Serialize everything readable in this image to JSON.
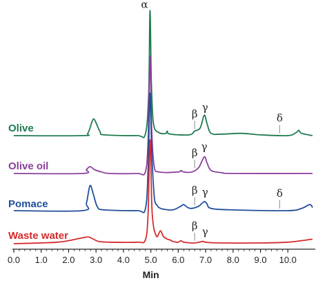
{
  "chart_data": {
    "type": "line",
    "xlabel": "Min",
    "xlim": [
      0.0,
      10.95
    ],
    "x_ticks": [
      "0.0",
      "1.0",
      "2.0",
      "3.0",
      "4.0",
      "5.0",
      "6.0",
      "7.0",
      "8.0",
      "9.0",
      "10.0"
    ],
    "grid": false,
    "legend": "none",
    "series": [
      {
        "name": "Olive",
        "color": "#1f7a4f",
        "points": [
          [
            0.0,
            0.0
          ],
          [
            2.5,
            0.0
          ],
          [
            2.7,
            0.03
          ],
          [
            2.85,
            0.18
          ],
          [
            2.92,
            0.22
          ],
          [
            3.0,
            0.17
          ],
          [
            3.15,
            0.05
          ],
          [
            3.3,
            0.01
          ],
          [
            4.5,
            0.0
          ],
          [
            4.8,
            0.02
          ],
          [
            4.92,
            0.55
          ],
          [
            4.97,
            1.65
          ],
          [
            5.02,
            0.7
          ],
          [
            5.1,
            0.15
          ],
          [
            5.3,
            0.04
          ],
          [
            5.55,
            0.03
          ],
          [
            5.6,
            0.06
          ],
          [
            5.7,
            0.02
          ],
          [
            6.4,
            0.01
          ],
          [
            6.6,
            0.06
          ],
          [
            6.8,
            0.1
          ],
          [
            6.95,
            0.27
          ],
          [
            7.05,
            0.16
          ],
          [
            7.2,
            0.03
          ],
          [
            7.6,
            0.02
          ],
          [
            8.3,
            0.03
          ],
          [
            9.0,
            0.01
          ],
          [
            10.0,
            0.0
          ],
          [
            10.3,
            0.04
          ],
          [
            10.4,
            0.07
          ],
          [
            10.5,
            0.03
          ],
          [
            10.9,
            0.0
          ]
        ]
      },
      {
        "name": "Olive oil",
        "color": "#8a3f9a",
        "points": [
          [
            0.0,
            0.0
          ],
          [
            2.5,
            0.0
          ],
          [
            2.65,
            0.05
          ],
          [
            2.78,
            0.09
          ],
          [
            2.95,
            0.05
          ],
          [
            3.2,
            0.02
          ],
          [
            3.5,
            0.0
          ],
          [
            4.5,
            0.0
          ],
          [
            4.8,
            0.02
          ],
          [
            4.9,
            0.45
          ],
          [
            4.97,
            1.55
          ],
          [
            5.03,
            0.6
          ],
          [
            5.12,
            0.1
          ],
          [
            5.3,
            0.02
          ],
          [
            6.0,
            0.02
          ],
          [
            6.1,
            0.04
          ],
          [
            6.2,
            0.02
          ],
          [
            6.5,
            0.02
          ],
          [
            6.75,
            0.08
          ],
          [
            6.95,
            0.22
          ],
          [
            7.05,
            0.14
          ],
          [
            7.2,
            0.04
          ],
          [
            7.6,
            0.01
          ],
          [
            8.0,
            0.0
          ],
          [
            10.9,
            0.0
          ]
        ]
      },
      {
        "name": "Pomace",
        "color": "#1f4e9a",
        "points": [
          [
            0.0,
            0.0
          ],
          [
            2.5,
            0.0
          ],
          [
            2.65,
            0.1
          ],
          [
            2.78,
            0.33
          ],
          [
            2.9,
            0.22
          ],
          [
            3.05,
            0.05
          ],
          [
            3.3,
            0.01
          ],
          [
            4.5,
            0.0
          ],
          [
            4.8,
            0.02
          ],
          [
            4.9,
            0.55
          ],
          [
            4.97,
            1.55
          ],
          [
            5.03,
            0.8
          ],
          [
            5.1,
            0.3
          ],
          [
            5.15,
            0.12
          ],
          [
            5.25,
            0.06
          ],
          [
            5.3,
            0.04
          ],
          [
            5.45,
            0.02
          ],
          [
            5.8,
            0.01
          ],
          [
            6.1,
            0.06
          ],
          [
            6.2,
            0.08
          ],
          [
            6.35,
            0.04
          ],
          [
            6.5,
            0.03
          ],
          [
            6.75,
            0.06
          ],
          [
            6.95,
            0.12
          ],
          [
            7.05,
            0.09
          ],
          [
            7.2,
            0.03
          ],
          [
            8.0,
            0.01
          ],
          [
            10.0,
            0.0
          ],
          [
            10.5,
            0.03
          ],
          [
            10.8,
            0.08
          ],
          [
            10.9,
            0.04
          ]
        ]
      },
      {
        "name": "Waste water",
        "color": "#d42a2a",
        "points": [
          [
            0.0,
            0.0
          ],
          [
            1.0,
            0.01
          ],
          [
            1.6,
            0.02
          ],
          [
            2.0,
            0.04
          ],
          [
            2.4,
            0.07
          ],
          [
            2.7,
            0.09
          ],
          [
            2.85,
            0.07
          ],
          [
            3.1,
            0.03
          ],
          [
            3.5,
            0.02
          ],
          [
            4.5,
            0.02
          ],
          [
            4.8,
            0.05
          ],
          [
            4.9,
            0.4
          ],
          [
            4.97,
            1.37
          ],
          [
            5.05,
            0.4
          ],
          [
            5.2,
            0.1
          ],
          [
            5.35,
            0.17
          ],
          [
            5.45,
            0.1
          ],
          [
            5.6,
            0.06
          ],
          [
            5.7,
            0.05
          ],
          [
            5.8,
            0.03
          ],
          [
            6.0,
            0.02
          ],
          [
            6.1,
            0.04
          ],
          [
            6.2,
            0.02
          ],
          [
            6.6,
            0.01
          ],
          [
            6.9,
            0.03
          ],
          [
            7.0,
            0.02
          ],
          [
            7.5,
            0.01
          ],
          [
            9.0,
            0.01
          ],
          [
            10.0,
            0.02
          ],
          [
            10.5,
            0.04
          ],
          [
            10.9,
            0.06
          ]
        ]
      }
    ],
    "annotations": [
      {
        "text": "α",
        "series": "Olive",
        "x": 4.97
      },
      {
        "text": "β",
        "series": "Olive",
        "x": 6.6
      },
      {
        "text": "γ",
        "series": "Olive",
        "x": 6.98
      },
      {
        "text": "δ",
        "series": "Olive",
        "x": 9.7
      },
      {
        "text": "β",
        "series": "Olive oil",
        "x": 6.6
      },
      {
        "text": "γ",
        "series": "Olive oil",
        "x": 6.95
      },
      {
        "text": "β",
        "series": "Pomace",
        "x": 6.6
      },
      {
        "text": "γ",
        "series": "Pomace",
        "x": 6.98
      },
      {
        "text": "δ",
        "series": "Pomace",
        "x": 9.7
      },
      {
        "text": "β",
        "series": "Waste water",
        "x": 6.6
      },
      {
        "text": "γ",
        "series": "Waste water",
        "x": 6.98
      }
    ]
  }
}
